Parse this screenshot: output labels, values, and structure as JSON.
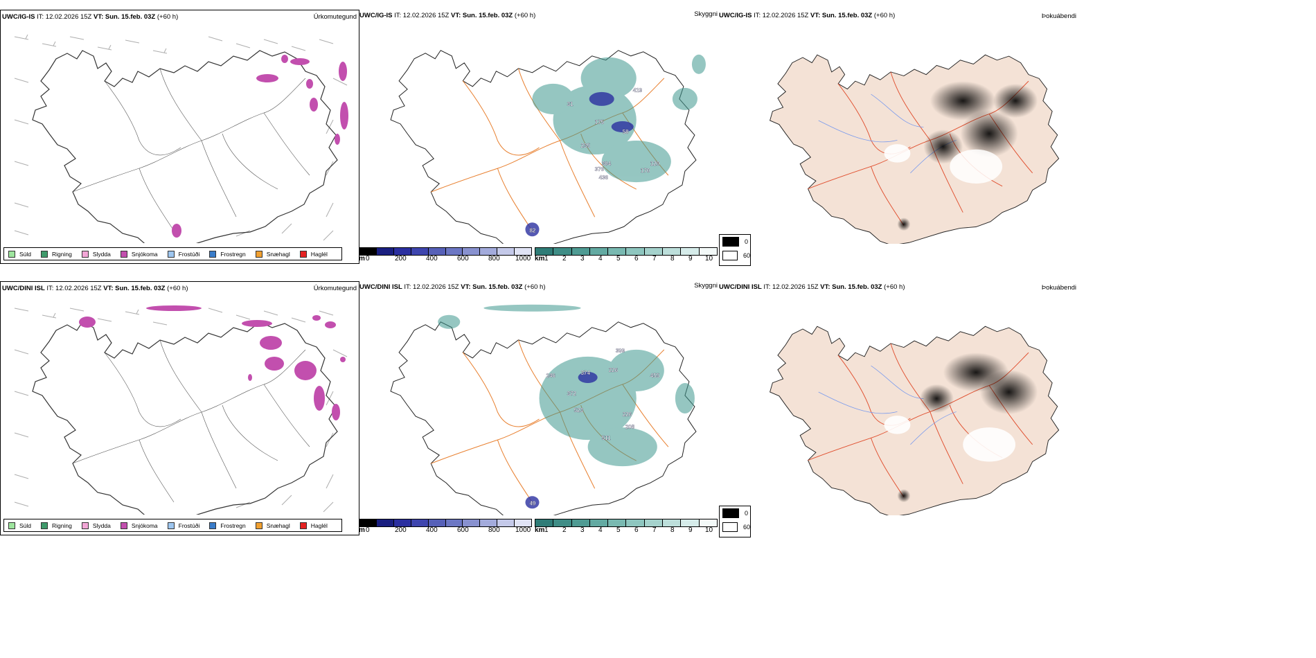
{
  "colors": {
    "sudd": "#9ee59e",
    "rigning": "#3f9a6b",
    "slydda": "#f2a6d6",
    "snjokoma": "#c24fae",
    "frostudi": "#9ec6ef",
    "frostregn": "#3a7cc9",
    "snaehagl": "#f1a030",
    "haglel": "#e52222",
    "ocean": "#ffffff",
    "land_fill": "#f4e2d6",
    "road": "#e88030",
    "river": "#7799ee",
    "cloud_teal": "#3f9990",
    "cloud_blue": "#2b2fa0",
    "dew_dark": "#111111"
  },
  "rows": [
    {
      "model_label": "UWC/IG-IS",
      "it_text": "IT: 12.02.2026 15Z",
      "vt_label": "VT:",
      "vt_value": "Sun. 15.feb. 03Z",
      "lead": "(+60 h)",
      "panels": {
        "precip": "Úrkomutegund",
        "cloud": "Skyggni",
        "dew": "Þokuábendi"
      },
      "cloud_labels": [
        "419",
        "175",
        "31",
        "58",
        "235",
        "384",
        "120",
        "376",
        "436",
        "170",
        "82"
      ]
    },
    {
      "model_label": "UWC/DINI ISL",
      "it_text": "IT: 12.02.2026 15Z",
      "vt_label": "VT:",
      "vt_value": "Sun. 15.feb. 03Z",
      "lead": "(+60 h)",
      "panels": {
        "precip": "Úrkomutegund",
        "cloud": "Skyggni",
        "dew": "Þokuábendi"
      },
      "cloud_labels": [
        "399",
        "246",
        "374",
        "226",
        "455",
        "372",
        "523",
        "226",
        "208",
        "511",
        "49"
      ]
    }
  ],
  "precip_legend": [
    {
      "label": "Súld",
      "color_key": "sudd"
    },
    {
      "label": "Rigning",
      "color_key": "rigning"
    },
    {
      "label": "Slydda",
      "color_key": "slydda"
    },
    {
      "label": "Snjókoma",
      "color_key": "snjokoma"
    },
    {
      "label": "Frostúði",
      "color_key": "frostudi"
    },
    {
      "label": "Frostregn",
      "color_key": "frostregn"
    },
    {
      "label": "Snæhagl",
      "color_key": "snaehagl"
    },
    {
      "label": "Haglél",
      "color_key": "haglel"
    }
  ],
  "ceiling_scale": {
    "unit": "m",
    "ticks": [
      "0",
      "200",
      "400",
      "600",
      "800",
      "1000"
    ]
  },
  "visibility_scale": {
    "unit": "km",
    "ticks": [
      "1",
      "2",
      "3",
      "4",
      "5",
      "6",
      "7",
      "8",
      "9",
      "10"
    ]
  },
  "fog_key": {
    "high": "0",
    "low": "60"
  }
}
